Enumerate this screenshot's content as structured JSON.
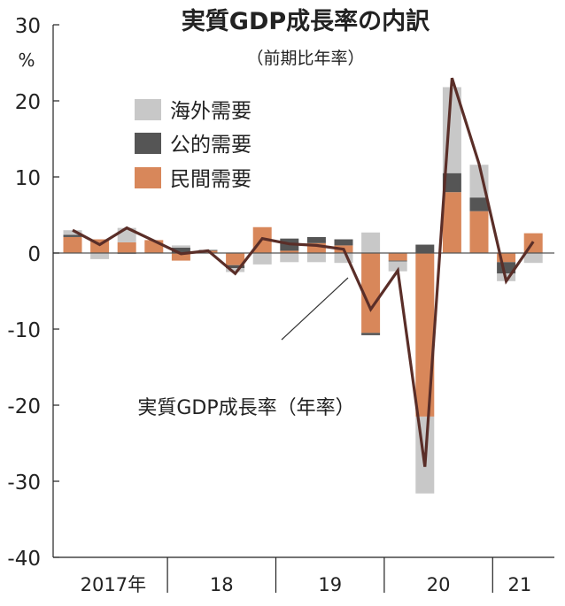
{
  "chart_data": {
    "type": "bar",
    "title": "実質GDP成長率の内訳",
    "subtitle": "（前期比年率）",
    "ylabel": "%",
    "ylim": [
      -40,
      30
    ],
    "yticks": [
      30,
      20,
      10,
      0,
      -10,
      -20,
      -30,
      -40
    ],
    "ytick_labels": [
      "30",
      "20",
      "10",
      "0",
      "-10",
      "-20",
      "-30",
      "-40"
    ],
    "x": [
      "2017Q1",
      "2017Q2",
      "2017Q3",
      "2017Q4",
      "2018Q1",
      "2018Q2",
      "2018Q3",
      "2018Q4",
      "2019Q1",
      "2019Q2",
      "2019Q3",
      "2019Q4",
      "2020Q1",
      "2020Q2",
      "2020Q3",
      "2020Q4",
      "2021Q1",
      "2021Q2"
    ],
    "year_labels": [
      {
        "label": "2017年",
        "quarters": 4
      },
      {
        "label": "18",
        "quarters": 4
      },
      {
        "label": "19",
        "quarters": 4
      },
      {
        "label": "20",
        "quarters": 4
      },
      {
        "label": "21",
        "quarters": 2
      }
    ],
    "series": [
      {
        "name": "民間需要",
        "kind": "stacked-bar",
        "color": "#d8875a",
        "values": [
          2.1,
          1.8,
          1.4,
          1.7,
          -1.0,
          0.3,
          -1.6,
          3.4,
          0.3,
          1.3,
          1.0,
          -10.5,
          -1.0,
          -21.5,
          8.0,
          5.5,
          -1.2,
          2.6
        ]
      },
      {
        "name": "公的需要",
        "kind": "stacked-bar",
        "color": "#555555",
        "values": [
          0.3,
          0.0,
          -0.1,
          0.0,
          0.7,
          0.1,
          -0.4,
          0.0,
          1.6,
          0.8,
          0.8,
          -0.3,
          -0.1,
          1.1,
          2.5,
          1.8,
          -1.5,
          0.0
        ]
      },
      {
        "name": "海外需要",
        "kind": "stacked-bar",
        "color": "#c8c8c8",
        "values": [
          0.6,
          -0.8,
          1.9,
          0.0,
          0.3,
          0.0,
          -0.5,
          -1.5,
          -1.2,
          -1.2,
          -1.3,
          2.7,
          -1.3,
          -10.1,
          11.3,
          4.3,
          -1.0,
          -1.3
        ]
      },
      {
        "name": "実質GDP成長率（年率）",
        "kind": "line",
        "color": "#5a2e28",
        "values": [
          3.0,
          1.1,
          3.3,
          1.6,
          -0.1,
          0.3,
          -2.7,
          1.9,
          1.2,
          1.0,
          0.5,
          -7.4,
          -2.3,
          -28.1,
          23.0,
          11.7,
          -3.7,
          1.5
        ]
      }
    ],
    "legend": [
      "海外需要",
      "公的需要",
      "民間需要"
    ],
    "legend_placement": "top-left",
    "annotation": "実質GDP成長率（年率）",
    "grid": false
  }
}
